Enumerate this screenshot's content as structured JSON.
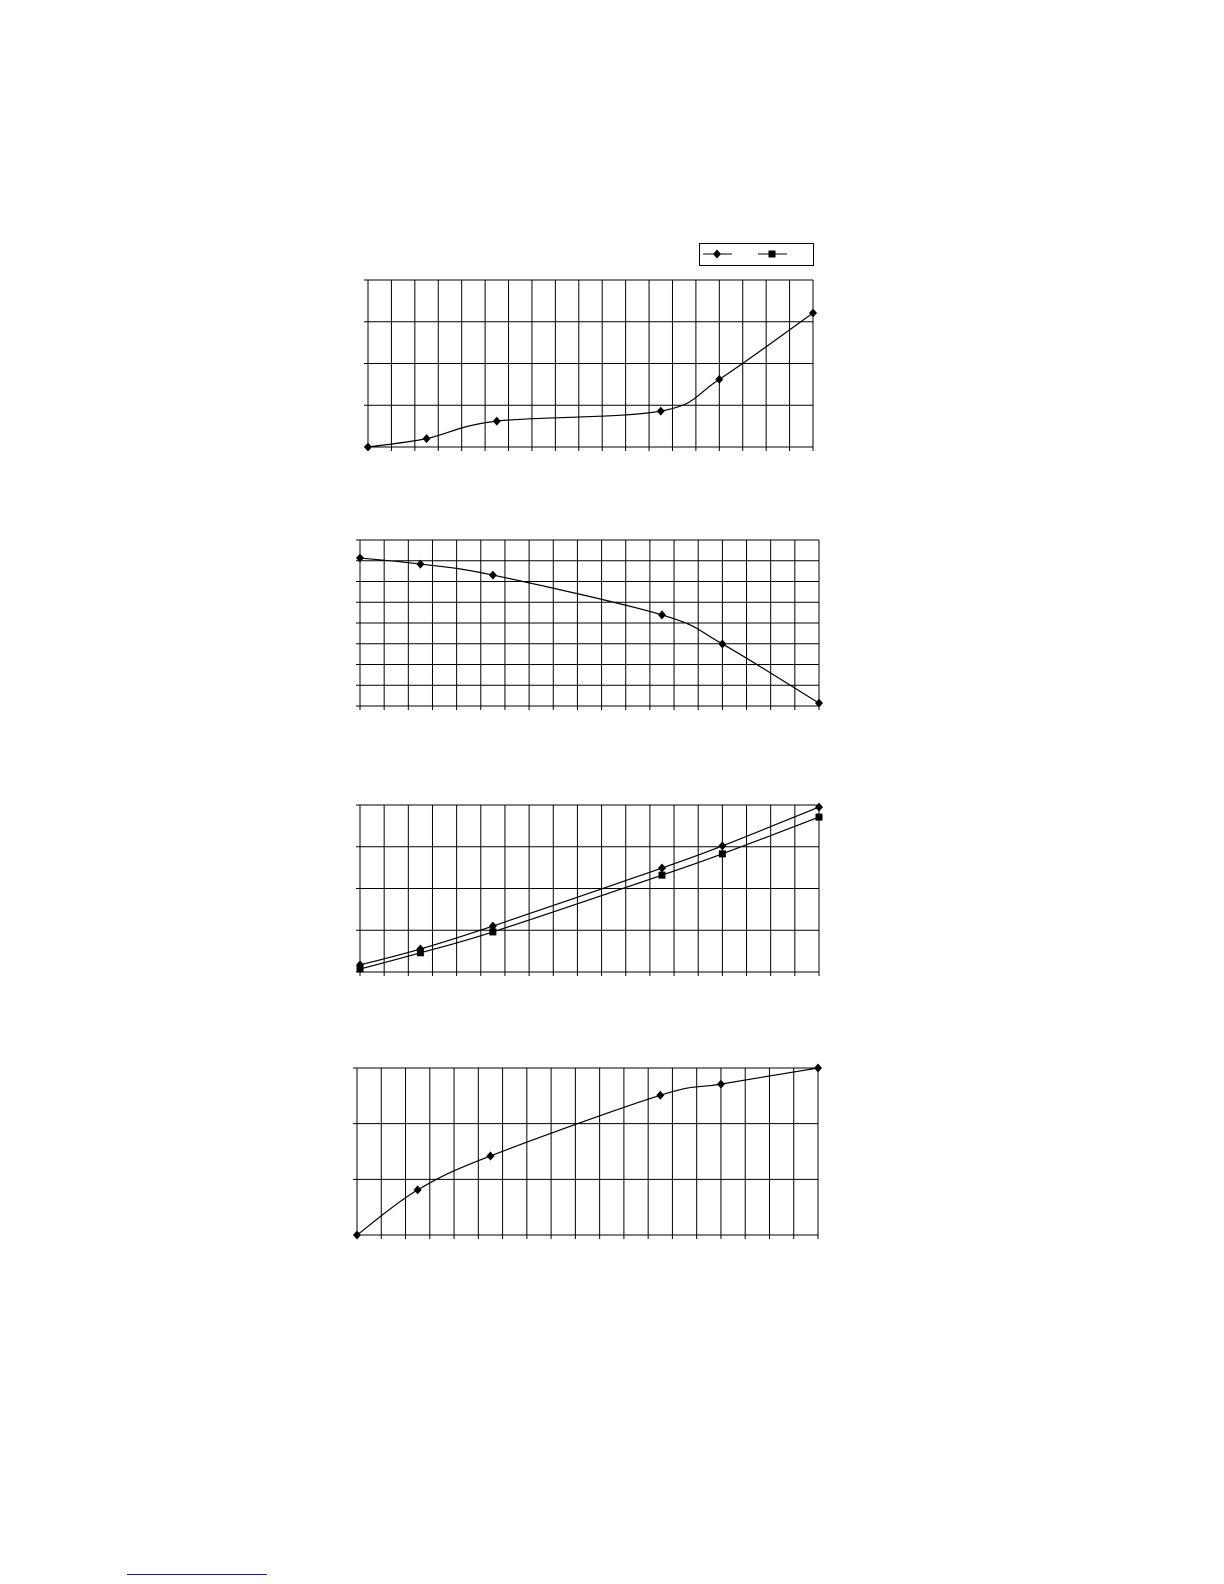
{
  "line_color": "#000000",
  "link_underline_color": "#1a1aa6",
  "legend": {
    "placement": "top-right",
    "markers": [
      "diamond",
      "square"
    ]
  },
  "chart_data": [
    {
      "type": "line",
      "grid": true,
      "xlim": [
        0,
        19
      ],
      "ylim": [
        0,
        4
      ],
      "x_divisions": 19,
      "y_divisions": 4,
      "series": [
        {
          "marker": "diamond",
          "x": [
            0,
            2.5,
            5.5,
            12.5,
            15,
            19
          ],
          "y": [
            0,
            0.2,
            0.62,
            0.86,
            1.62,
            3.21
          ]
        }
      ]
    },
    {
      "type": "line",
      "grid": true,
      "xlim": [
        0,
        19
      ],
      "ylim": [
        0,
        8
      ],
      "x_divisions": 19,
      "y_divisions": 8,
      "series": [
        {
          "marker": "diamond",
          "x": [
            0,
            2.5,
            5.5,
            12.5,
            15,
            19
          ],
          "y": [
            7.13,
            6.84,
            6.31,
            4.39,
            2.99,
            0.14
          ]
        }
      ]
    },
    {
      "type": "line",
      "grid": true,
      "xlim": [
        0,
        19
      ],
      "ylim": [
        0,
        4
      ],
      "x_divisions": 19,
      "y_divisions": 4,
      "series": [
        {
          "marker": "diamond",
          "x": [
            0,
            2.5,
            5.5,
            12.5,
            15,
            19
          ],
          "y": [
            0.17,
            0.55,
            1.1,
            2.49,
            3.02,
            3.95
          ]
        },
        {
          "marker": "square",
          "x": [
            0,
            2.5,
            5.5,
            12.5,
            15,
            19
          ],
          "y": [
            0.07,
            0.46,
            0.96,
            2.32,
            2.83,
            3.71
          ]
        }
      ]
    },
    {
      "type": "line",
      "grid": true,
      "xlim": [
        0,
        19
      ],
      "ylim": [
        0,
        3
      ],
      "x_divisions": 19,
      "y_divisions": 3,
      "series": [
        {
          "marker": "diamond",
          "x": [
            0,
            2.5,
            5.5,
            12.5,
            15,
            19
          ],
          "y": [
            0,
            0.81,
            1.42,
            2.51,
            2.71,
            3
          ]
        }
      ]
    }
  ]
}
